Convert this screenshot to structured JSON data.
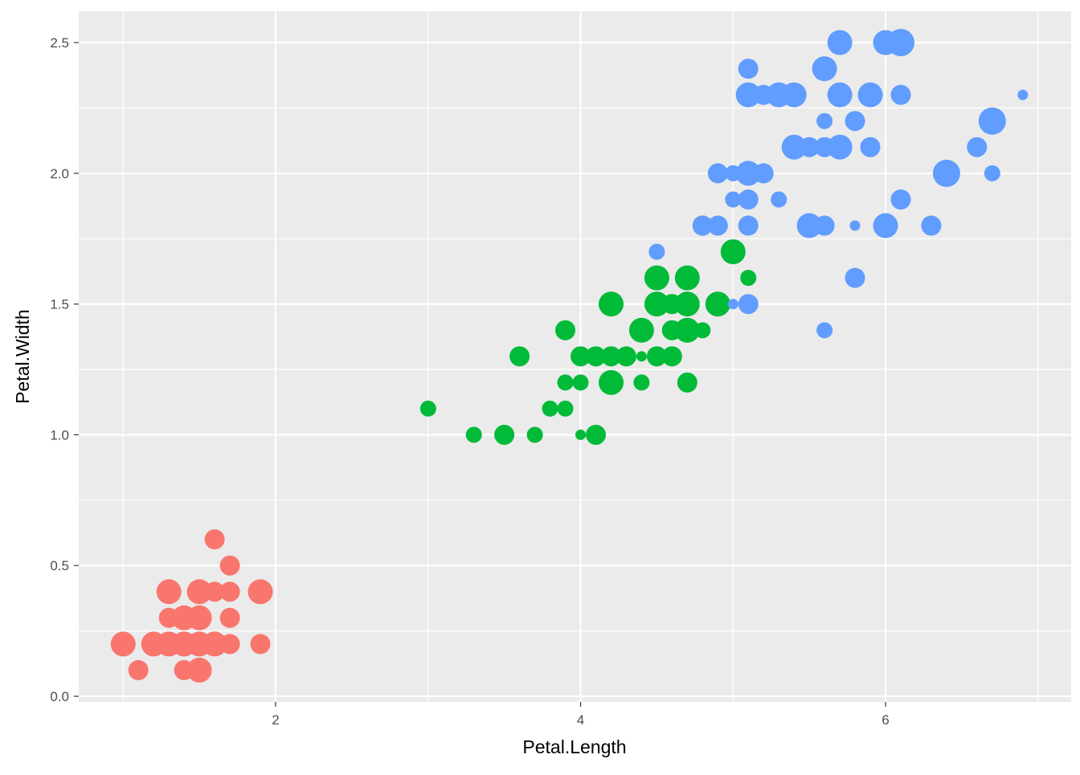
{
  "chart_data": {
    "type": "scatter",
    "title": "",
    "xlabel": "Petal.Length",
    "ylabel": "Petal.Width",
    "xlim": [
      0.705,
      7.195
    ],
    "ylim": [
      -0.02,
      2.62
    ],
    "x_ticks": [
      2,
      4,
      6
    ],
    "x_tick_labels": [
      "2",
      "4",
      "6"
    ],
    "y_ticks": [
      0.0,
      0.5,
      1.0,
      1.5,
      2.0,
      2.5
    ],
    "y_tick_labels": [
      "0.0",
      "0.5",
      "1.0",
      "1.5",
      "2.0",
      "2.5"
    ],
    "grid": true,
    "legend": "none",
    "colors": {
      "panel_background": "#EBEBEB",
      "grid_line": "#FFFFFF",
      "tick_label": "#4D4D4D",
      "axis_title": "#000000"
    },
    "size_encoding": "relative marker size (small / medium / large)",
    "series": [
      {
        "color": "#F8766D",
        "points": [
          [
            1.0,
            0.2,
            "L"
          ],
          [
            1.1,
            0.1,
            "M"
          ],
          [
            1.2,
            0.2,
            "L"
          ],
          [
            1.3,
            0.2,
            "L"
          ],
          [
            1.3,
            0.3,
            "M"
          ],
          [
            1.3,
            0.4,
            "L"
          ],
          [
            1.4,
            0.1,
            "M"
          ],
          [
            1.4,
            0.2,
            "L"
          ],
          [
            1.4,
            0.3,
            "L"
          ],
          [
            1.5,
            0.1,
            "L"
          ],
          [
            1.5,
            0.2,
            "L"
          ],
          [
            1.5,
            0.3,
            "L"
          ],
          [
            1.5,
            0.4,
            "L"
          ],
          [
            1.6,
            0.2,
            "L"
          ],
          [
            1.6,
            0.4,
            "M"
          ],
          [
            1.6,
            0.6,
            "M"
          ],
          [
            1.7,
            0.2,
            "M"
          ],
          [
            1.7,
            0.3,
            "M"
          ],
          [
            1.7,
            0.4,
            "M"
          ],
          [
            1.7,
            0.5,
            "M"
          ],
          [
            1.9,
            0.2,
            "M"
          ],
          [
            1.9,
            0.4,
            "L"
          ]
        ]
      },
      {
        "color": "#00BA38",
        "points": [
          [
            3.0,
            1.1,
            "S"
          ],
          [
            3.3,
            1.0,
            "S"
          ],
          [
            3.5,
            1.0,
            "M"
          ],
          [
            3.6,
            1.3,
            "M"
          ],
          [
            3.7,
            1.0,
            "S"
          ],
          [
            3.8,
            1.1,
            "S"
          ],
          [
            3.9,
            1.1,
            "S"
          ],
          [
            3.9,
            1.2,
            "S"
          ],
          [
            3.9,
            1.4,
            "M"
          ],
          [
            4.0,
            1.0,
            "XS"
          ],
          [
            4.0,
            1.2,
            "S"
          ],
          [
            4.0,
            1.3,
            "M"
          ],
          [
            4.1,
            1.0,
            "M"
          ],
          [
            4.1,
            1.3,
            "M"
          ],
          [
            4.2,
            1.2,
            "L"
          ],
          [
            4.2,
            1.3,
            "M"
          ],
          [
            4.2,
            1.5,
            "L"
          ],
          [
            4.3,
            1.3,
            "M"
          ],
          [
            4.4,
            1.2,
            "S"
          ],
          [
            4.4,
            1.3,
            "XS"
          ],
          [
            4.4,
            1.4,
            "L"
          ],
          [
            4.5,
            1.3,
            "M"
          ],
          [
            4.5,
            1.5,
            "L"
          ],
          [
            4.5,
            1.6,
            "L"
          ],
          [
            4.6,
            1.3,
            "M"
          ],
          [
            4.6,
            1.4,
            "M"
          ],
          [
            4.6,
            1.5,
            "M"
          ],
          [
            4.7,
            1.2,
            "M"
          ],
          [
            4.7,
            1.4,
            "L"
          ],
          [
            4.7,
            1.5,
            "L"
          ],
          [
            4.7,
            1.6,
            "L"
          ],
          [
            4.8,
            1.4,
            "S"
          ],
          [
            4.8,
            1.8,
            "M"
          ],
          [
            4.9,
            1.5,
            "L"
          ],
          [
            5.0,
            1.7,
            "L"
          ],
          [
            5.1,
            1.6,
            "S"
          ]
        ]
      },
      {
        "color": "#619CFF",
        "points": [
          [
            4.5,
            1.7,
            "S"
          ],
          [
            4.8,
            1.8,
            "M"
          ],
          [
            4.9,
            1.8,
            "M"
          ],
          [
            4.9,
            2.0,
            "M"
          ],
          [
            5.0,
            1.5,
            "XS"
          ],
          [
            5.0,
            1.9,
            "S"
          ],
          [
            5.0,
            2.0,
            "S"
          ],
          [
            5.1,
            1.5,
            "M"
          ],
          [
            5.1,
            1.8,
            "M"
          ],
          [
            5.1,
            1.9,
            "M"
          ],
          [
            5.1,
            2.0,
            "L"
          ],
          [
            5.1,
            2.3,
            "L"
          ],
          [
            5.1,
            2.4,
            "M"
          ],
          [
            5.2,
            2.0,
            "M"
          ],
          [
            5.2,
            2.3,
            "M"
          ],
          [
            5.3,
            1.9,
            "S"
          ],
          [
            5.3,
            2.3,
            "L"
          ],
          [
            5.4,
            2.1,
            "L"
          ],
          [
            5.4,
            2.3,
            "L"
          ],
          [
            5.5,
            1.8,
            "L"
          ],
          [
            5.5,
            2.1,
            "M"
          ],
          [
            5.6,
            1.4,
            "S"
          ],
          [
            5.6,
            1.8,
            "M"
          ],
          [
            5.6,
            2.1,
            "M"
          ],
          [
            5.6,
            2.2,
            "S"
          ],
          [
            5.6,
            2.4,
            "L"
          ],
          [
            5.7,
            2.1,
            "L"
          ],
          [
            5.7,
            2.3,
            "L"
          ],
          [
            5.7,
            2.5,
            "L"
          ],
          [
            5.8,
            1.6,
            "M"
          ],
          [
            5.8,
            1.8,
            "XS"
          ],
          [
            5.8,
            2.2,
            "M"
          ],
          [
            5.9,
            2.1,
            "M"
          ],
          [
            5.9,
            2.3,
            "L"
          ],
          [
            6.0,
            1.8,
            "L"
          ],
          [
            6.0,
            2.5,
            "L"
          ],
          [
            6.1,
            1.9,
            "M"
          ],
          [
            6.1,
            2.3,
            "M"
          ],
          [
            6.1,
            2.5,
            "XL"
          ],
          [
            6.3,
            1.8,
            "M"
          ],
          [
            6.4,
            2.0,
            "XL"
          ],
          [
            6.6,
            2.1,
            "M"
          ],
          [
            6.7,
            2.0,
            "S"
          ],
          [
            6.7,
            2.2,
            "XL"
          ],
          [
            6.9,
            2.3,
            "XS"
          ]
        ]
      }
    ]
  }
}
